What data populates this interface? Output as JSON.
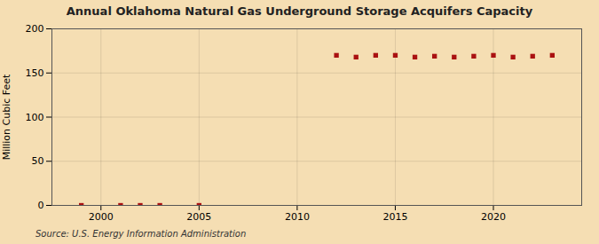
{
  "chart_data": {
    "type": "scatter",
    "title": "Annual Oklahoma Natural Gas Underground Storage Acquifers Capacity",
    "ylabel": "Million Cubic Feet",
    "source": "Source: U.S. Energy Information Administration",
    "x": [
      1999,
      2001,
      2002,
      2003,
      2005,
      2012,
      2013,
      2014,
      2015,
      2016,
      2017,
      2018,
      2019,
      2020,
      2021,
      2022,
      2023
    ],
    "values": [
      0,
      0,
      0,
      0,
      0,
      170,
      168,
      170,
      170,
      168,
      169,
      168,
      169,
      170,
      168,
      169,
      170
    ],
    "color": "#aa1111",
    "marker": "square",
    "xlim": [
      1997.5,
      2024.5
    ],
    "ylim": [
      0,
      200
    ],
    "xticks": [
      2000,
      2005,
      2010,
      2015,
      2020
    ],
    "yticks": [
      0,
      50,
      100,
      150,
      200
    ],
    "grid": true
  }
}
